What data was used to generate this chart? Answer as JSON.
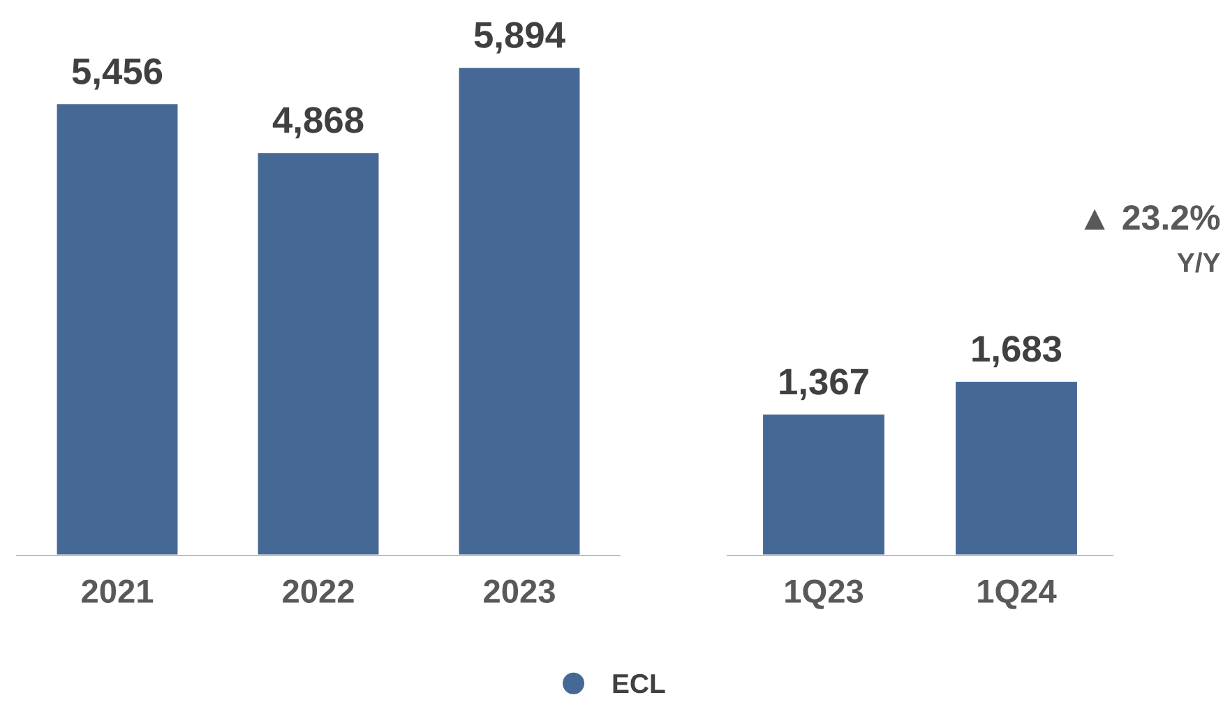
{
  "chart_data": [
    {
      "type": "bar",
      "categories": [
        "2021",
        "2022",
        "2023"
      ],
      "legend": "bottom",
      "series": [
        {
          "name": "ECL",
          "color": "#466895",
          "values": [
            5456,
            4868,
            5894
          ],
          "value_labels": [
            "5,456",
            "4,868",
            "5,894"
          ]
        }
      ]
    },
    {
      "type": "bar",
      "categories": [
        "1Q23",
        "1Q24"
      ],
      "annotations": [
        "▲ 23.2%",
        "Y/Y"
      ],
      "series": [
        {
          "color": "#466895",
          "values": [
            1367,
            1683
          ],
          "value_labels": [
            "1,367",
            "1,683"
          ]
        }
      ]
    }
  ]
}
